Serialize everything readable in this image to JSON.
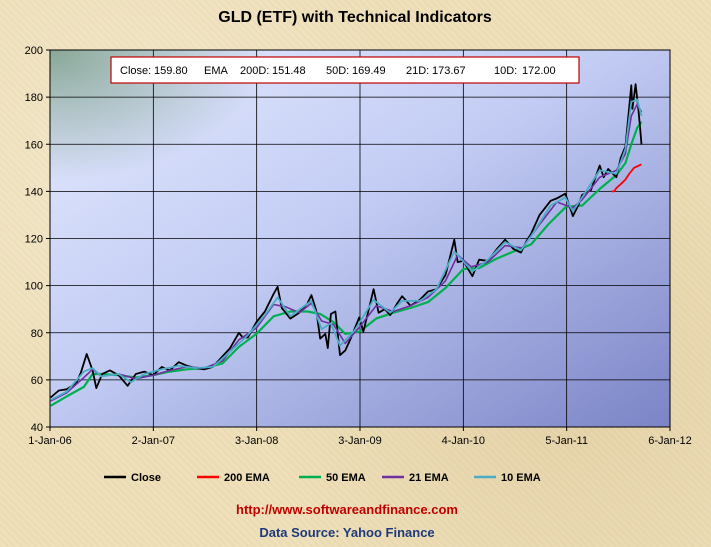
{
  "chart_data": {
    "type": "line",
    "title": "GLD (ETF)  with Technical Indicators",
    "summary": {
      "close_label": "Close:",
      "close_value": "159.80",
      "ema_label": "EMA",
      "ema200_label": "200D:",
      "ema200_value": "151.48",
      "ema50_label": "50D:",
      "ema50_value": "169.49",
      "ema21_label": "21D:",
      "ema21_value": "173.67",
      "ema10_label": "10D:",
      "ema10_value": "172.00"
    },
    "x_ticks": [
      "1-Jan-06",
      "2-Jan-07",
      "3-Jan-08",
      "3-Jan-09",
      "4-Jan-10",
      "5-Jan-11",
      "6-Jan-12"
    ],
    "x_range": [
      "2006-01-01",
      "2012-01-06"
    ],
    "y_ticks": [
      "40",
      "60",
      "80",
      "100",
      "120",
      "140",
      "160",
      "180",
      "200"
    ],
    "ylim": [
      40,
      200
    ],
    "grid": true,
    "legend_position": "bottom",
    "series": [
      {
        "name": "Close",
        "color": "#000000",
        "points": [
          [
            "2006-01-03",
            52.5
          ],
          [
            "2006-02-01",
            55.5
          ],
          [
            "2006-03-01",
            56.0
          ],
          [
            "2006-04-03",
            58.5
          ],
          [
            "2006-04-20",
            63.0
          ],
          [
            "2006-05-11",
            71.0
          ],
          [
            "2006-06-01",
            64.0
          ],
          [
            "2006-06-14",
            56.5
          ],
          [
            "2006-07-05",
            62.5
          ],
          [
            "2006-08-01",
            64.0
          ],
          [
            "2006-09-01",
            62.0
          ],
          [
            "2006-10-03",
            57.5
          ],
          [
            "2006-11-01",
            62.5
          ],
          [
            "2006-12-01",
            63.5
          ],
          [
            "2007-01-02",
            62.0
          ],
          [
            "2007-02-01",
            65.5
          ],
          [
            "2007-03-01",
            64.0
          ],
          [
            "2007-04-02",
            67.5
          ],
          [
            "2007-05-01",
            66.0
          ],
          [
            "2007-06-01",
            65.0
          ],
          [
            "2007-07-02",
            64.5
          ],
          [
            "2007-08-01",
            65.5
          ],
          [
            "2007-09-04",
            70.0
          ],
          [
            "2007-10-01",
            73.5
          ],
          [
            "2007-11-01",
            80.0
          ],
          [
            "2007-11-15",
            78.0
          ],
          [
            "2007-12-03",
            78.0
          ],
          [
            "2008-01-02",
            84.5
          ],
          [
            "2008-02-01",
            89.0
          ],
          [
            "2008-03-03",
            96.5
          ],
          [
            "2008-03-17",
            99.5
          ],
          [
            "2008-04-01",
            90.5
          ],
          [
            "2008-05-01",
            86.0
          ],
          [
            "2008-06-02",
            88.5
          ],
          [
            "2008-07-01",
            92.5
          ],
          [
            "2008-07-15",
            96.0
          ],
          [
            "2008-08-01",
            89.5
          ],
          [
            "2008-08-15",
            77.5
          ],
          [
            "2008-09-02",
            79.5
          ],
          [
            "2008-09-11",
            73.5
          ],
          [
            "2008-09-22",
            88.0
          ],
          [
            "2008-10-08",
            89.0
          ],
          [
            "2008-10-24",
            70.5
          ],
          [
            "2008-11-12",
            72.5
          ],
          [
            "2008-12-01",
            77.5
          ],
          [
            "2008-12-31",
            86.5
          ],
          [
            "2009-01-15",
            80.5
          ],
          [
            "2009-02-02",
            89.5
          ],
          [
            "2009-02-20",
            98.5
          ],
          [
            "2009-03-10",
            88.5
          ],
          [
            "2009-04-01",
            90.0
          ],
          [
            "2009-04-20",
            87.5
          ],
          [
            "2009-05-15",
            92.5
          ],
          [
            "2009-06-01",
            95.5
          ],
          [
            "2009-07-01",
            91.5
          ],
          [
            "2009-08-03",
            94.0
          ],
          [
            "2009-09-01",
            97.5
          ],
          [
            "2009-10-01",
            98.5
          ],
          [
            "2009-11-02",
            104.5
          ],
          [
            "2009-12-03",
            119.5
          ],
          [
            "2009-12-15",
            110.0
          ],
          [
            "2010-01-04",
            110.5
          ],
          [
            "2010-02-05",
            104.0
          ],
          [
            "2010-03-01",
            111.0
          ],
          [
            "2010-04-01",
            110.5
          ],
          [
            "2010-05-03",
            115.5
          ],
          [
            "2010-06-01",
            119.5
          ],
          [
            "2010-07-01",
            115.5
          ],
          [
            "2010-07-27",
            114.0
          ],
          [
            "2010-08-16",
            119.0
          ],
          [
            "2010-09-01",
            122.0
          ],
          [
            "2010-10-01",
            130.0
          ],
          [
            "2010-11-09",
            136.0
          ],
          [
            "2010-12-01",
            137.0
          ],
          [
            "2010-12-31",
            139.0
          ],
          [
            "2011-01-27",
            129.5
          ],
          [
            "2011-02-15",
            134.0
          ],
          [
            "2011-03-01",
            138.5
          ],
          [
            "2011-04-01",
            140.5
          ],
          [
            "2011-05-02",
            151.0
          ],
          [
            "2011-05-16",
            146.0
          ],
          [
            "2011-06-01",
            149.5
          ],
          [
            "2011-06-30",
            146.0
          ],
          [
            "2011-07-15",
            154.0
          ],
          [
            "2011-08-01",
            159.0
          ],
          [
            "2011-08-10",
            170.0
          ],
          [
            "2011-08-22",
            185.0
          ],
          [
            "2011-08-26",
            175.0
          ],
          [
            "2011-09-06",
            185.5
          ],
          [
            "2011-09-15",
            176.0
          ],
          [
            "2011-09-22",
            167.0
          ],
          [
            "2011-09-27",
            159.8
          ]
        ]
      },
      {
        "name": "200 EMA",
        "color": "#ff0000",
        "points": [
          [
            "2011-06-13",
            140.0
          ],
          [
            "2011-06-22",
            140.0
          ],
          [
            "2011-07-01",
            141.5
          ],
          [
            "2011-07-15",
            143.0
          ],
          [
            "2011-08-01",
            145.0
          ],
          [
            "2011-08-15",
            147.5
          ],
          [
            "2011-09-01",
            150.0
          ],
          [
            "2011-09-27",
            151.48
          ]
        ]
      },
      {
        "name": "50 EMA",
        "color": "#00b050",
        "points": [
          [
            "2006-01-03",
            49.0
          ],
          [
            "2006-03-01",
            53.0
          ],
          [
            "2006-05-01",
            57.0
          ],
          [
            "2006-06-01",
            62.5
          ],
          [
            "2006-07-01",
            62.5
          ],
          [
            "2006-09-01",
            62.0
          ],
          [
            "2006-11-01",
            61.0
          ],
          [
            "2007-01-02",
            62.0
          ],
          [
            "2007-03-01",
            63.5
          ],
          [
            "2007-05-01",
            64.5
          ],
          [
            "2007-07-02",
            65.0
          ],
          [
            "2007-09-04",
            67.0
          ],
          [
            "2007-11-01",
            74.0
          ],
          [
            "2008-01-02",
            79.5
          ],
          [
            "2008-03-03",
            87.0
          ],
          [
            "2008-05-01",
            89.0
          ],
          [
            "2008-07-01",
            89.0
          ],
          [
            "2008-08-15",
            88.0
          ],
          [
            "2008-10-01",
            84.5
          ],
          [
            "2008-11-12",
            79.5
          ],
          [
            "2009-01-02",
            80.5
          ],
          [
            "2009-03-01",
            86.0
          ],
          [
            "2009-05-01",
            88.5
          ],
          [
            "2009-07-01",
            90.5
          ],
          [
            "2009-09-01",
            93.0
          ],
          [
            "2009-11-02",
            99.0
          ],
          [
            "2010-01-04",
            107.0
          ],
          [
            "2010-03-01",
            107.5
          ],
          [
            "2010-05-03",
            111.5
          ],
          [
            "2010-07-01",
            114.5
          ],
          [
            "2010-09-01",
            117.5
          ],
          [
            "2010-11-01",
            126.0
          ],
          [
            "2011-01-03",
            133.5
          ],
          [
            "2011-03-01",
            134.0
          ],
          [
            "2011-05-02",
            141.0
          ],
          [
            "2011-07-01",
            147.0
          ],
          [
            "2011-08-01",
            152.0
          ],
          [
            "2011-08-22",
            160.0
          ],
          [
            "2011-09-12",
            167.0
          ],
          [
            "2011-09-27",
            169.49
          ]
        ]
      },
      {
        "name": "21 EMA",
        "color": "#7030a0",
        "points": [
          [
            "2006-01-03",
            51.0
          ],
          [
            "2006-03-01",
            54.5
          ],
          [
            "2006-05-01",
            61.0
          ],
          [
            "2006-06-01",
            64.5
          ],
          [
            "2006-07-01",
            61.5
          ],
          [
            "2006-09-01",
            62.5
          ],
          [
            "2006-11-01",
            60.5
          ],
          [
            "2007-01-02",
            62.0
          ],
          [
            "2007-03-01",
            64.0
          ],
          [
            "2007-05-01",
            65.5
          ],
          [
            "2007-07-02",
            65.0
          ],
          [
            "2007-09-04",
            68.0
          ],
          [
            "2007-11-01",
            77.0
          ],
          [
            "2008-01-02",
            82.0
          ],
          [
            "2008-03-03",
            92.0
          ],
          [
            "2008-04-15",
            91.0
          ],
          [
            "2008-06-02",
            88.5
          ],
          [
            "2008-07-15",
            92.5
          ],
          [
            "2008-08-20",
            85.0
          ],
          [
            "2008-10-01",
            83.5
          ],
          [
            "2008-11-12",
            75.5
          ],
          [
            "2009-01-02",
            82.5
          ],
          [
            "2009-03-01",
            91.5
          ],
          [
            "2009-05-01",
            89.0
          ],
          [
            "2009-07-01",
            91.5
          ],
          [
            "2009-09-01",
            95.0
          ],
          [
            "2009-11-02",
            102.0
          ],
          [
            "2009-12-15",
            113.0
          ],
          [
            "2010-02-01",
            108.0
          ],
          [
            "2010-04-01",
            110.0
          ],
          [
            "2010-06-01",
            117.0
          ],
          [
            "2010-08-01",
            116.0
          ],
          [
            "2010-10-01",
            126.0
          ],
          [
            "2010-12-01",
            135.5
          ],
          [
            "2011-01-27",
            133.0
          ],
          [
            "2011-03-01",
            136.5
          ],
          [
            "2011-05-02",
            146.0
          ],
          [
            "2011-07-01",
            149.0
          ],
          [
            "2011-08-01",
            156.0
          ],
          [
            "2011-08-22",
            172.0
          ],
          [
            "2011-09-12",
            177.0
          ],
          [
            "2011-09-27",
            173.67
          ]
        ]
      },
      {
        "name": "10 EMA",
        "color": "#4bacc6",
        "points": [
          [
            "2006-01-03",
            51.5
          ],
          [
            "2006-03-01",
            55.0
          ],
          [
            "2006-05-01",
            63.5
          ],
          [
            "2006-06-01",
            65.0
          ],
          [
            "2006-07-01",
            61.5
          ],
          [
            "2006-09-01",
            62.5
          ],
          [
            "2006-10-15",
            59.0
          ],
          [
            "2006-12-01",
            62.5
          ],
          [
            "2007-02-01",
            64.5
          ],
          [
            "2007-04-02",
            66.0
          ],
          [
            "2007-06-01",
            65.0
          ],
          [
            "2007-08-01",
            65.5
          ],
          [
            "2007-10-01",
            72.0
          ],
          [
            "2007-12-03",
            79.0
          ],
          [
            "2008-02-01",
            87.5
          ],
          [
            "2008-03-17",
            95.0
          ],
          [
            "2008-05-01",
            87.0
          ],
          [
            "2008-07-15",
            93.5
          ],
          [
            "2008-08-20",
            81.5
          ],
          [
            "2008-09-22",
            84.0
          ],
          [
            "2008-10-24",
            74.5
          ],
          [
            "2008-12-15",
            81.0
          ],
          [
            "2009-02-20",
            94.0
          ],
          [
            "2009-04-20",
            88.5
          ],
          [
            "2009-06-01",
            93.5
          ],
          [
            "2009-08-03",
            93.5
          ],
          [
            "2009-10-01",
            98.5
          ],
          [
            "2009-12-03",
            114.5
          ],
          [
            "2010-02-05",
            106.0
          ],
          [
            "2010-04-01",
            111.0
          ],
          [
            "2010-06-01",
            118.5
          ],
          [
            "2010-07-27",
            115.0
          ],
          [
            "2010-09-01",
            121.0
          ],
          [
            "2010-11-09",
            134.0
          ],
          [
            "2010-12-31",
            137.5
          ],
          [
            "2011-01-27",
            131.5
          ],
          [
            "2011-03-01",
            137.5
          ],
          [
            "2011-05-02",
            149.0
          ],
          [
            "2011-06-30",
            147.5
          ],
          [
            "2011-08-01",
            158.0
          ],
          [
            "2011-08-22",
            178.0
          ],
          [
            "2011-09-12",
            179.0
          ],
          [
            "2011-09-27",
            172.0
          ]
        ]
      }
    ]
  },
  "footer": {
    "url": "http://www.softwareandfinance.com",
    "source": "Data Source: Yahoo Finance"
  }
}
